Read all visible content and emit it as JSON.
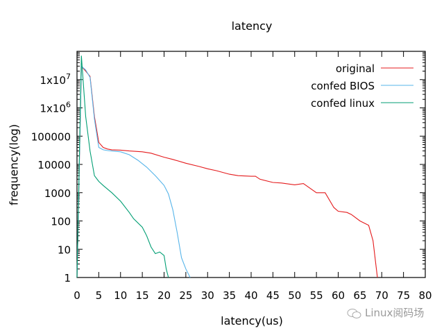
{
  "chart_data": {
    "type": "line",
    "title": "latency",
    "xlabel": "latency(us)",
    "ylabel": "frequency(log)",
    "xlim": [
      0,
      80
    ],
    "ylim": [
      1,
      100000000
    ],
    "yscale": "log",
    "grid": false,
    "legend_position": "top-right",
    "x_ticks": [
      0,
      5,
      10,
      15,
      20,
      25,
      30,
      35,
      40,
      45,
      50,
      55,
      60,
      65,
      70,
      75,
      80
    ],
    "y_ticks": [
      {
        "value": 1,
        "label": "1"
      },
      {
        "value": 10,
        "label": "10"
      },
      {
        "value": 100,
        "label": "100"
      },
      {
        "value": 1000,
        "label": "1000"
      },
      {
        "value": 10000,
        "label": "10000"
      },
      {
        "value": 100000,
        "label": "100000"
      },
      {
        "value": 1000000,
        "label": "1x10^6"
      },
      {
        "value": 10000000,
        "label": "1x10^7"
      }
    ],
    "series": [
      {
        "name": "original",
        "color": "#e41a1c",
        "x": [
          0,
          1,
          2,
          3,
          4,
          5,
          6,
          7,
          8,
          10,
          12,
          15,
          17,
          20,
          22,
          25,
          28,
          30,
          32,
          35,
          37,
          40,
          41,
          42,
          45,
          47,
          50,
          52,
          55,
          57,
          59,
          60,
          62,
          63,
          65,
          67,
          68,
          69
        ],
        "y": [
          1,
          30000000,
          20000000,
          13000000,
          500000,
          60000,
          40000,
          35000,
          33000,
          32000,
          30000,
          28000,
          25000,
          18000,
          15000,
          11000,
          8500,
          7000,
          6000,
          4500,
          4000,
          3800,
          3800,
          3000,
          2300,
          2200,
          1900,
          2100,
          1000,
          1000,
          300,
          220,
          200,
          170,
          100,
          70,
          20,
          1
        ]
      },
      {
        "name": "confed BIOS",
        "color": "#56b4e9",
        "x": [
          0,
          1,
          2,
          3,
          4,
          5,
          6,
          7,
          8,
          10,
          12,
          14,
          16,
          18,
          20,
          21,
          22,
          23,
          24,
          25,
          26
        ],
        "y": [
          1,
          30000000,
          22000000,
          12000000,
          400000,
          40000,
          33000,
          31000,
          30000,
          28000,
          22000,
          14000,
          8000,
          4000,
          1800,
          900,
          250,
          40,
          5,
          2,
          1
        ]
      },
      {
        "name": "confed linux",
        "color": "#009e73",
        "x": [
          0,
          1,
          2,
          3,
          4,
          5,
          6,
          8,
          10,
          12,
          13,
          15,
          16,
          17,
          18,
          19,
          20,
          20.5,
          21
        ],
        "y": [
          1,
          70000000,
          500000,
          30000,
          4000,
          2500,
          1800,
          1000,
          500,
          200,
          120,
          60,
          30,
          12,
          7,
          8,
          6,
          2,
          1
        ]
      }
    ]
  },
  "labels": {
    "title": "latency",
    "xlabel": "latency(us)",
    "ylabel": "frequency(log)",
    "watermark": "Linux阅码场"
  }
}
